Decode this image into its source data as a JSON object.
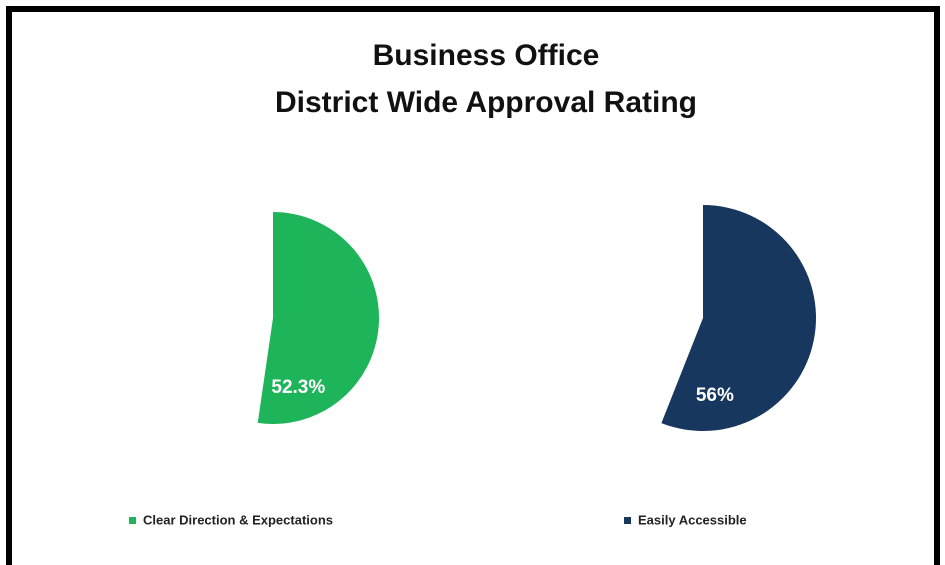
{
  "title": [
    "Business Office",
    "District Wide Approval Rating"
  ],
  "chart_data": [
    {
      "type": "pie",
      "categories": [
        "Clear Direction & Expectations"
      ],
      "values": [
        52.3
      ],
      "value_labels": [
        "52.3%"
      ],
      "colors": [
        "#1db45a"
      ]
    },
    {
      "type": "pie",
      "categories": [
        "Easily Accessible"
      ],
      "values": [
        56
      ],
      "value_labels": [
        "56%"
      ],
      "colors": [
        "#17375e"
      ]
    }
  ]
}
